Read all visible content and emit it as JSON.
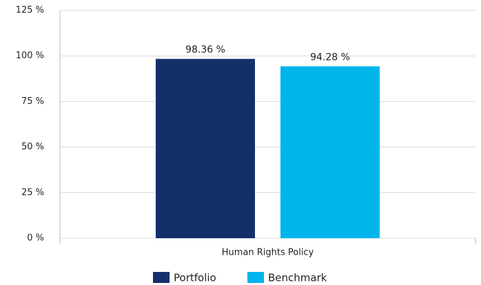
{
  "chart_data": {
    "type": "bar",
    "categories": [
      "Human Rights Policy"
    ],
    "series": [
      {
        "name": "Portfolio",
        "color": "#14306b",
        "values": [
          98.36
        ],
        "value_labels": [
          "98.36 %"
        ]
      },
      {
        "name": "Benchmark",
        "color": "#00b5ec",
        "values": [
          94.28
        ],
        "value_labels": [
          "94.28 %"
        ]
      }
    ],
    "ylim": [
      0,
      125
    ],
    "yticks": [
      {
        "value": 0,
        "label": "0 %"
      },
      {
        "value": 25,
        "label": "25 %"
      },
      {
        "value": 50,
        "label": "50 %"
      },
      {
        "value": 75,
        "label": "75 %"
      },
      {
        "value": 100,
        "label": "100 %"
      },
      {
        "value": 125,
        "label": "125 %"
      }
    ],
    "grid": true,
    "legend": "bottom"
  }
}
